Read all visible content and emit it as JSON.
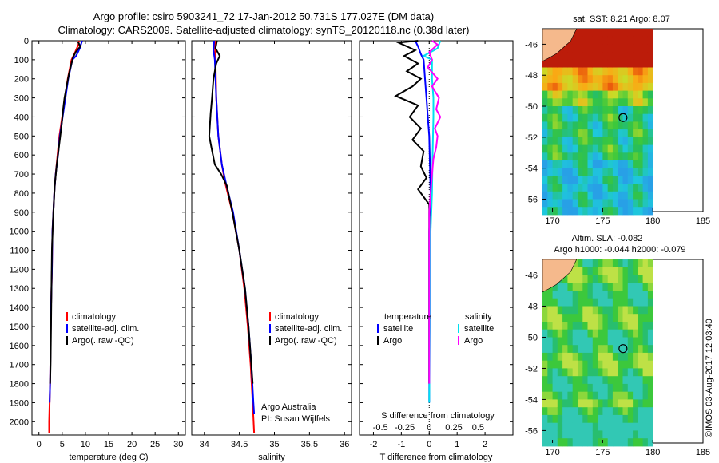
{
  "header": {
    "title_line1": "Argo profile: csiro 5903241_72 17-Jan-2012 50.731S 177.027E (DM data)",
    "title_line2": "Climatology: CARS2009. Satellite-adjusted climatology: synTS_20120118.nc (0.38d later)"
  },
  "colors": {
    "climatology": "#ff0000",
    "satellite": "#0000ff",
    "argo": "#000000",
    "sal_satellite": "#00e0f0",
    "sal_argo": "#ff00ff",
    "land": "#f5b98c"
  },
  "depth_axis": {
    "ticks": [
      0,
      100,
      200,
      300,
      400,
      500,
      600,
      700,
      800,
      900,
      1000,
      1100,
      1200,
      1300,
      1400,
      1500,
      1600,
      1700,
      1800,
      1900,
      2000
    ],
    "range": [
      0,
      2070
    ]
  },
  "chart_data": [
    {
      "type": "line",
      "name": "temperature-panel",
      "xlabel": "temperature (deg C)",
      "xticks": [
        0,
        5,
        10,
        15,
        20,
        25,
        30
      ],
      "xlim": [
        -1.5,
        31.5
      ],
      "ylim": [
        0,
        2070
      ],
      "legend": [
        "climatology",
        "satellite-adj. clim.",
        "Argo(..raw -QC)"
      ],
      "legend_position": "lower-center",
      "series": [
        {
          "name": "climatology",
          "color": "#ff0000",
          "points": [
            [
              8.6,
              0
            ],
            [
              8.5,
              20
            ],
            [
              7.8,
              60
            ],
            [
              7.0,
              100
            ],
            [
              6.2,
              200
            ],
            [
              5.6,
              300
            ],
            [
              5.0,
              400
            ],
            [
              4.4,
              500
            ],
            [
              4.0,
              600
            ],
            [
              3.6,
              700
            ],
            [
              3.3,
              800
            ],
            [
              3.1,
              900
            ],
            [
              2.9,
              1000
            ],
            [
              2.8,
              1200
            ],
            [
              2.6,
              1400
            ],
            [
              2.5,
              1600
            ],
            [
              2.4,
              1800
            ],
            [
              2.2,
              2000
            ],
            [
              2.2,
              2060
            ]
          ]
        },
        {
          "name": "satellite-adj. clim.",
          "color": "#0000ff",
          "points": [
            [
              9.3,
              0
            ],
            [
              8.8,
              40
            ],
            [
              8.0,
              80
            ],
            [
              7.2,
              100
            ],
            [
              6.3,
              200
            ],
            [
              5.7,
              300
            ],
            [
              5.1,
              400
            ],
            [
              4.5,
              500
            ],
            [
              4.1,
              600
            ],
            [
              3.6,
              700
            ],
            [
              3.3,
              800
            ],
            [
              3.1,
              900
            ],
            [
              2.9,
              1000
            ],
            [
              2.8,
              1200
            ],
            [
              2.6,
              1400
            ],
            [
              2.5,
              1600
            ],
            [
              2.4,
              1800
            ],
            [
              2.3,
              1900
            ]
          ]
        },
        {
          "name": "Argo(..raw -QC)",
          "color": "#000000",
          "points": [
            [
              8.4,
              5
            ],
            [
              8.9,
              30
            ],
            [
              7.9,
              60
            ],
            [
              7.3,
              90
            ],
            [
              6.4,
              180
            ],
            [
              5.5,
              300
            ],
            [
              5.2,
              360
            ],
            [
              4.9,
              440
            ],
            [
              4.3,
              560
            ],
            [
              3.8,
              660
            ],
            [
              3.4,
              760
            ],
            [
              3.2,
              860
            ],
            [
              3.0,
              960
            ],
            [
              2.8,
              1100
            ],
            [
              2.7,
              1300
            ],
            [
              2.6,
              1500
            ],
            [
              2.5,
              1700
            ],
            [
              2.4,
              1800
            ]
          ]
        }
      ]
    },
    {
      "type": "line",
      "name": "salinity-panel",
      "xlabel": "salinity",
      "xticks": [
        34,
        34.5,
        35,
        35.5,
        36
      ],
      "xlim": [
        33.82,
        36.1
      ],
      "ylim": [
        0,
        2070
      ],
      "legend": [
        "climatology",
        "satellite-adj. clim.",
        "Argo(..raw -QC)"
      ],
      "legend_position": "lower-right",
      "note_lines": [
        "Argo Australia",
        "PI: Susan Wijffels"
      ],
      "series": [
        {
          "name": "climatology",
          "color": "#ff0000",
          "points": [
            [
              34.15,
              0
            ],
            [
              34.16,
              100
            ],
            [
              34.17,
              300
            ],
            [
              34.2,
              500
            ],
            [
              34.25,
              650
            ],
            [
              34.3,
              750
            ],
            [
              34.4,
              900
            ],
            [
              34.5,
              1100
            ],
            [
              34.57,
              1300
            ],
            [
              34.62,
              1500
            ],
            [
              34.66,
              1700
            ],
            [
              34.69,
              1900
            ],
            [
              34.71,
              2060
            ]
          ]
        },
        {
          "name": "satellite-adj. clim.",
          "color": "#0000ff",
          "points": [
            [
              34.14,
              0
            ],
            [
              34.13,
              50
            ],
            [
              34.15,
              100
            ],
            [
              34.17,
              300
            ],
            [
              34.2,
              500
            ],
            [
              34.25,
              650
            ],
            [
              34.31,
              750
            ],
            [
              34.41,
              900
            ],
            [
              34.5,
              1100
            ],
            [
              34.58,
              1300
            ],
            [
              34.63,
              1500
            ],
            [
              34.67,
              1700
            ],
            [
              34.7,
              1900
            ],
            [
              34.71,
              1960
            ]
          ]
        },
        {
          "name": "Argo(..raw -QC)",
          "color": "#000000",
          "points": [
            [
              34.18,
              0
            ],
            [
              34.16,
              40
            ],
            [
              34.22,
              80
            ],
            [
              34.17,
              120
            ],
            [
              34.13,
              200
            ],
            [
              34.11,
              300
            ],
            [
              34.09,
              380
            ],
            [
              34.07,
              500
            ],
            [
              34.1,
              560
            ],
            [
              34.15,
              650
            ],
            [
              34.24,
              700
            ],
            [
              34.32,
              760
            ],
            [
              34.4,
              900
            ],
            [
              34.5,
              1100
            ],
            [
              34.58,
              1300
            ],
            [
              34.63,
              1500
            ],
            [
              34.67,
              1700
            ],
            [
              34.69,
              1800
            ]
          ]
        }
      ]
    },
    {
      "type": "line",
      "name": "difference-panel",
      "xlabel": "T difference from climatology",
      "xticks": [
        -2,
        -1,
        0,
        1,
        2
      ],
      "xlim": [
        -2.5,
        3.0
      ],
      "top_xlabel": "S difference from climatology",
      "top_xtick_labels": [
        "-0.5",
        "-0.25",
        "0",
        "0.25",
        "0.5"
      ],
      "ylim": [
        0,
        2070
      ],
      "legend_temperature_title": "temperature",
      "legend_salinity_title": "salinity",
      "legend_temperature": [
        "satellite",
        "Argo"
      ],
      "legend_salinity": [
        "satellite",
        "Argo"
      ],
      "legend_position": "lower-center",
      "series": [
        {
          "name": "temperature satellite",
          "color": "#0000ff",
          "points": [
            [
              -0.5,
              0
            ],
            [
              -0.4,
              30
            ],
            [
              -0.3,
              70
            ],
            [
              -0.2,
              100
            ],
            [
              -0.15,
              200
            ],
            [
              -0.1,
              300
            ],
            [
              -0.05,
              400
            ],
            [
              0,
              500
            ],
            [
              0.05,
              800
            ],
            [
              0,
              1000
            ],
            [
              0,
              1500
            ],
            [
              0,
              1900
            ]
          ]
        },
        {
          "name": "temperature Argo",
          "color": "#000000",
          "points": [
            [
              -0.4,
              0
            ],
            [
              -1.1,
              10
            ],
            [
              -0.5,
              50
            ],
            [
              -0.9,
              80
            ],
            [
              -0.4,
              120
            ],
            [
              -0.8,
              160
            ],
            [
              -0.3,
              200
            ],
            [
              -0.6,
              240
            ],
            [
              -1.2,
              290
            ],
            [
              -0.4,
              340
            ],
            [
              -0.7,
              400
            ],
            [
              -0.3,
              460
            ],
            [
              -0.6,
              520
            ],
            [
              -0.2,
              580
            ],
            [
              -0.3,
              660
            ],
            [
              -0.1,
              720
            ],
            [
              -0.4,
              780
            ],
            [
              0,
              860
            ],
            [
              0,
              1000
            ],
            [
              0,
              1200
            ],
            [
              0,
              1400
            ],
            [
              0,
              1600
            ],
            [
              0,
              1800
            ]
          ]
        },
        {
          "name": "salinity satellite",
          "color": "#00e0f0",
          "points": [
            [
              0.4,
              0
            ],
            [
              0.3,
              40
            ],
            [
              -0.2,
              80
            ],
            [
              0.1,
              100
            ],
            [
              0.1,
              200
            ],
            [
              0.15,
              300
            ],
            [
              0.15,
              400
            ],
            [
              0.12,
              600
            ],
            [
              0.1,
              800
            ],
            [
              0.05,
              1000
            ],
            [
              0.03,
              1200
            ],
            [
              0.02,
              1500
            ],
            [
              0,
              1900
            ]
          ]
        },
        {
          "name": "salinity Argo",
          "color": "#ff00ff",
          "points": [
            [
              0.1,
              0
            ],
            [
              0.3,
              20
            ],
            [
              0,
              60
            ],
            [
              0.1,
              100
            ],
            [
              -0.05,
              140
            ],
            [
              0.3,
              200
            ],
            [
              0.1,
              240
            ],
            [
              0.35,
              300
            ],
            [
              0.25,
              360
            ],
            [
              0.4,
              400
            ],
            [
              0.2,
              460
            ],
            [
              0.3,
              500
            ],
            [
              0.25,
              560
            ],
            [
              0.15,
              620
            ],
            [
              0.1,
              700
            ],
            [
              0.05,
              800
            ],
            [
              0,
              900
            ],
            [
              0,
              1100
            ],
            [
              0,
              1400
            ],
            [
              0,
              1800
            ]
          ]
        }
      ]
    }
  ],
  "maps": {
    "sst": {
      "title": "sat. SST: 8.21  Argo: 8.07",
      "lat_ticks": [
        "-46",
        "-48",
        "-50",
        "-52",
        "-54",
        "-56"
      ],
      "lon_ticks": [
        "170",
        "175",
        "180",
        "185"
      ],
      "profile_lon": 177.027,
      "profile_lat": -50.731
    },
    "sla": {
      "title_line1": "Altim. SLA: -0.082",
      "title_line2": "Argo h1000: -0.044  h2000: -0.079",
      "lat_ticks": [
        "-46",
        "-48",
        "-50",
        "-52",
        "-54",
        "-56"
      ],
      "lon_ticks": [
        "170",
        "175",
        "180",
        "185"
      ],
      "profile_lon": 177.027,
      "profile_lat": -50.731
    }
  },
  "footer": {
    "stamp": "©IMOS 03-Aug-2017 12:03:40"
  }
}
